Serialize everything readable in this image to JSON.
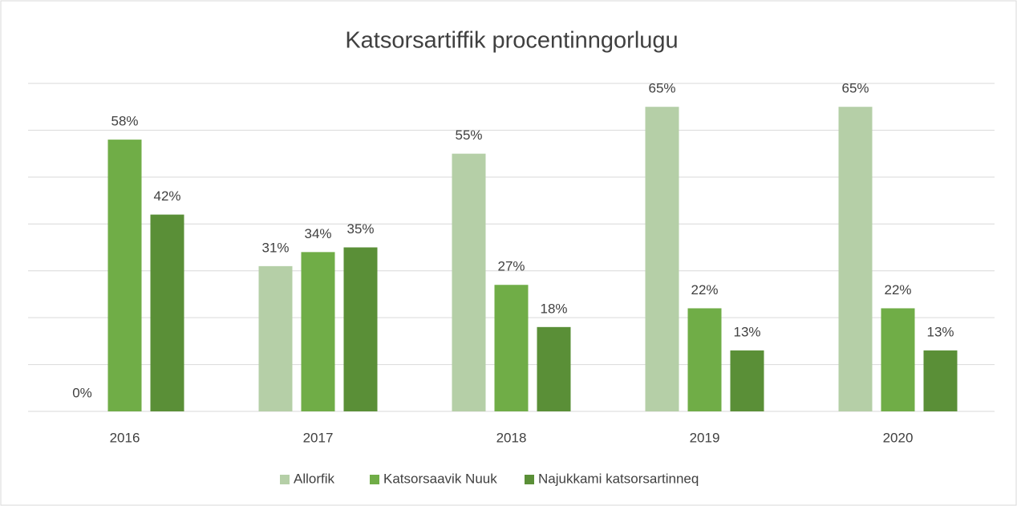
{
  "chart_data": {
    "type": "bar",
    "title": "Katsorsartiffik procentinngorlugu",
    "categories": [
      "2016",
      "2017",
      "2018",
      "2019",
      "2020"
    ],
    "series": [
      {
        "name": "Allorfik",
        "color": "#b5cfa7",
        "values": [
          0,
          31,
          55,
          65,
          65
        ],
        "value_labels": [
          "0%",
          "31%",
          "55%",
          "65%",
          "65%"
        ]
      },
      {
        "name": "Katsorsaavik Nuuk",
        "color": "#70ad47",
        "values": [
          58,
          34,
          27,
          22,
          22
        ],
        "value_labels": [
          "58%",
          "34%",
          "27%",
          "22%",
          "22%"
        ]
      },
      {
        "name": "Najukkami katsorsartinneq",
        "color": "#5a8f37",
        "values": [
          42,
          35,
          18,
          13,
          13
        ],
        "value_labels": [
          "42%",
          "35%",
          "18%",
          "13%",
          "13%"
        ]
      }
    ],
    "ylim": [
      0,
      70
    ],
    "yticks": [
      0,
      10,
      20,
      30,
      40,
      50,
      60,
      70
    ],
    "grid": true,
    "legend": "bottom"
  }
}
